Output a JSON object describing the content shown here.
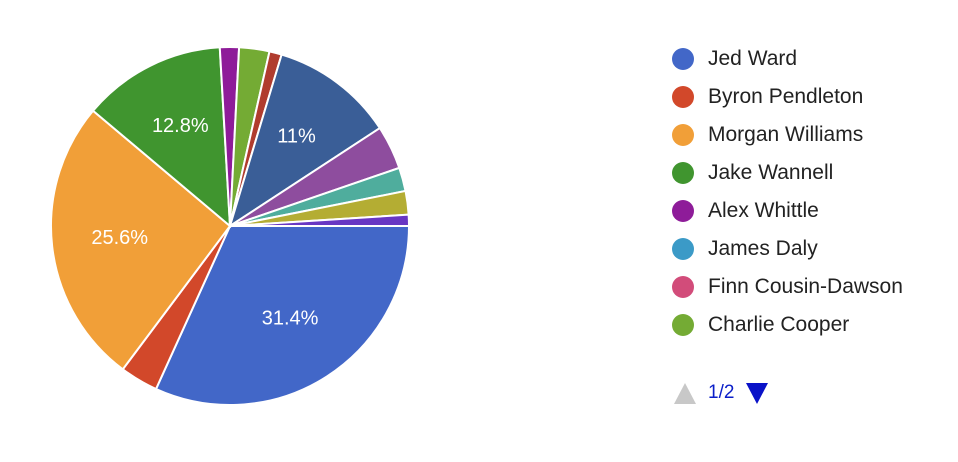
{
  "chart_data": {
    "type": "pie",
    "title": "",
    "series": [
      {
        "name": "Jed Ward",
        "value": 31.4,
        "color": "#4267c8",
        "label": "31.4%"
      },
      {
        "name": "Byron Pendleton",
        "value": 3.4,
        "color": "#d2482a",
        "label": ""
      },
      {
        "name": "Morgan Williams",
        "value": 25.6,
        "color": "#f19f38",
        "label": "25.6%"
      },
      {
        "name": "Jake Wannell",
        "value": 12.8,
        "color": "#40952f",
        "label": "12.8%"
      },
      {
        "name": "Alex Whittle",
        "value": 1.7,
        "color": "#8e1c99",
        "label": ""
      },
      {
        "name": "James Daly",
        "value": 0.0,
        "color": "#3b9ac7",
        "label": ""
      },
      {
        "name": "Finn Cousin-Dawson",
        "value": 0.0,
        "color": "#d24c7a",
        "label": ""
      },
      {
        "name": "Charlie Cooper",
        "value": 2.7,
        "color": "#74ab34",
        "label": ""
      },
      {
        "name": "",
        "value": 1.1,
        "color": "#b03c2e",
        "label": ""
      },
      {
        "name": "",
        "value": 11.0,
        "color": "#3a5e97",
        "label": "11%"
      },
      {
        "name": "",
        "value": 3.9,
        "color": "#8e4d9e",
        "label": ""
      },
      {
        "name": "",
        "value": 2.1,
        "color": "#4fad9d",
        "label": ""
      },
      {
        "name": "",
        "value": 2.1,
        "color": "#b4ad33",
        "label": ""
      },
      {
        "name": "",
        "value": 1.0,
        "color": "#6837c3",
        "label": ""
      }
    ],
    "legend_position": "right"
  },
  "legend": {
    "items": [
      {
        "label": "Jed Ward",
        "color": "#4267c8"
      },
      {
        "label": "Byron Pendleton",
        "color": "#d2482a"
      },
      {
        "label": "Morgan Williams",
        "color": "#f19f38"
      },
      {
        "label": "Jake Wannell",
        "color": "#40952f"
      },
      {
        "label": "Alex Whittle",
        "color": "#8e1c99"
      },
      {
        "label": "James Daly",
        "color": "#3b9ac7"
      },
      {
        "label": "Finn Cousin-Dawson",
        "color": "#d24c7a"
      },
      {
        "label": "Charlie Cooper",
        "color": "#74ab34"
      }
    ],
    "pager": {
      "text": "1/2",
      "prev_icon": "triangle-up-icon",
      "next_icon": "triangle-down-icon"
    }
  }
}
